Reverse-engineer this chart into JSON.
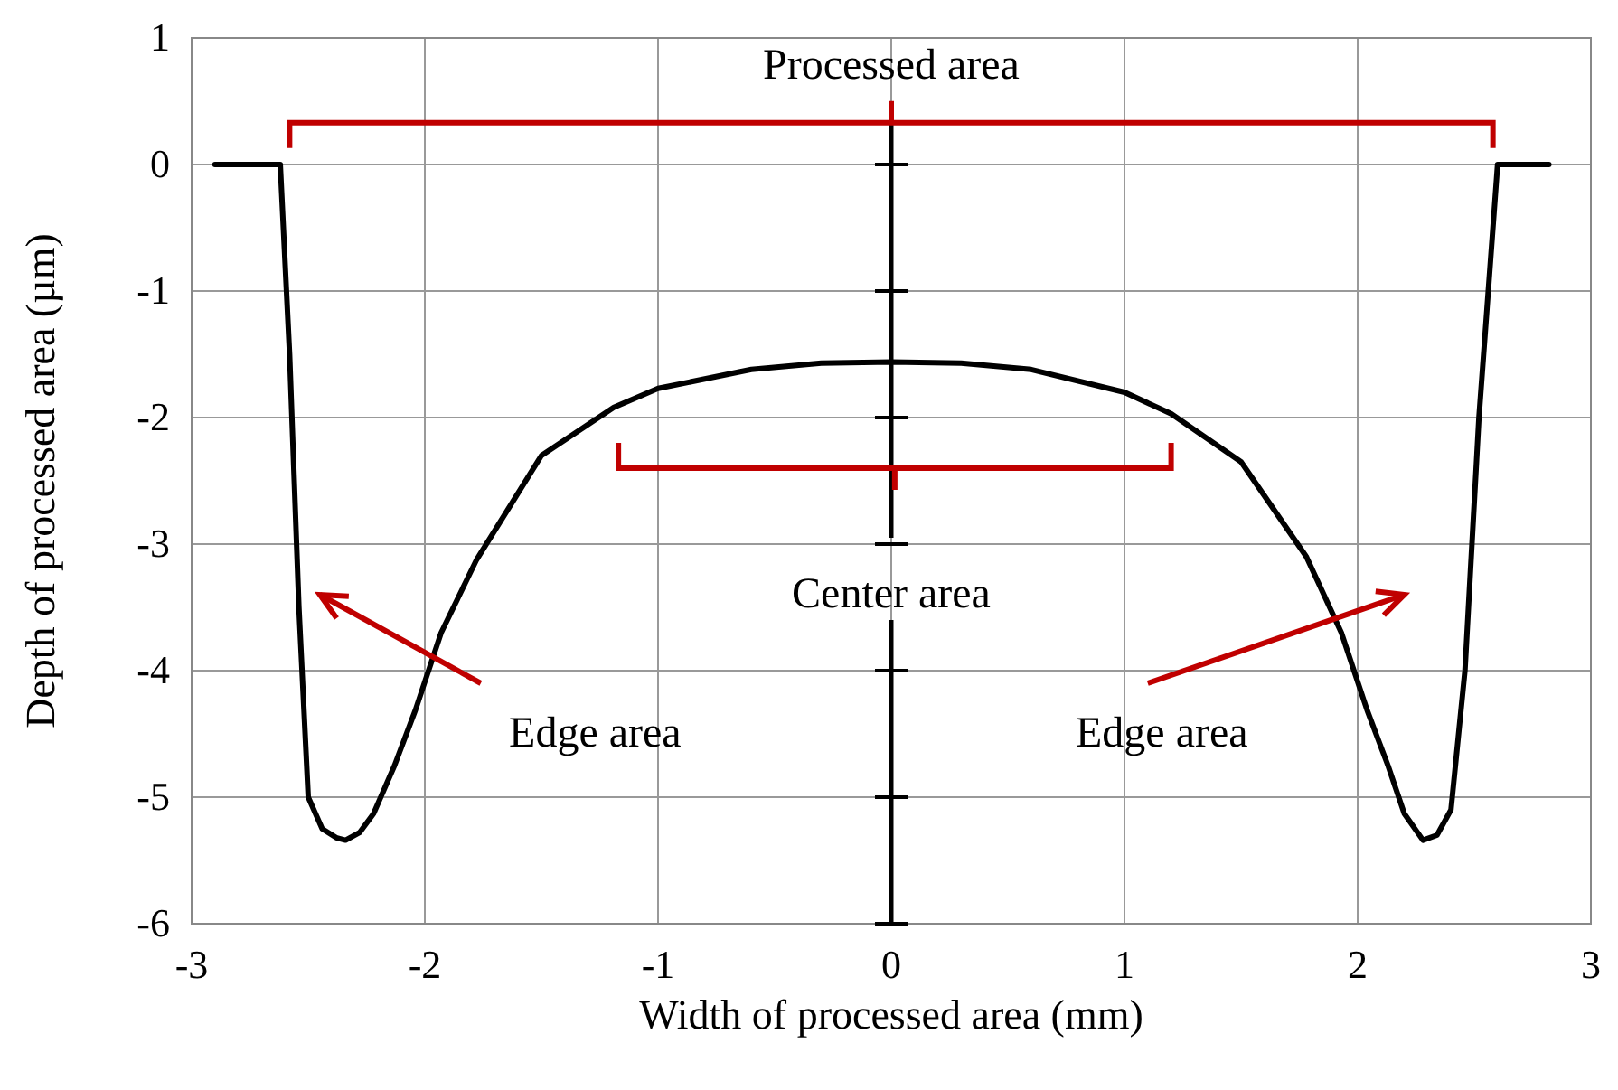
{
  "chart_data": {
    "type": "line",
    "xlabel": "Width of processed area (mm)",
    "ylabel": "Depth of processed area (µm)",
    "x": [
      -2.9,
      -2.62,
      -2.58,
      -2.54,
      -2.5,
      -2.44,
      -2.38,
      -2.34,
      -2.28,
      -2.22,
      -2.13,
      -2.04,
      -1.93,
      -1.78,
      -1.5,
      -1.19,
      -1.0,
      -0.6,
      -0.3,
      0,
      0.3,
      0.6,
      1.0,
      1.2,
      1.5,
      1.78,
      1.93,
      2.04,
      2.13,
      2.2,
      2.28,
      2.34,
      2.4,
      2.46,
      2.52,
      2.56,
      2.6,
      2.82
    ],
    "series": [
      {
        "color": "#000000",
        "values": [
          0,
          0,
          -1.5,
          -3.5,
          -5.0,
          -5.25,
          -5.32,
          -5.34,
          -5.28,
          -5.13,
          -4.75,
          -4.31,
          -3.7,
          -3.13,
          -2.3,
          -1.92,
          -1.77,
          -1.62,
          -1.57,
          -1.56,
          -1.57,
          -1.62,
          -1.8,
          -1.97,
          -2.35,
          -3.1,
          -3.7,
          -4.31,
          -4.75,
          -5.13,
          -5.34,
          -5.3,
          -5.1,
          -4.0,
          -2.0,
          -1.0,
          0,
          0
        ]
      }
    ],
    "xlim": [
      -3,
      3
    ],
    "xticks": [
      -3,
      -2,
      -1,
      0,
      1,
      2,
      3
    ],
    "ylim": [
      -6,
      1
    ],
    "yticks": [
      -6,
      -5,
      -4,
      -3,
      -2,
      -1,
      0,
      1
    ],
    "grid": true,
    "marker": "none",
    "line_style": "solid",
    "annotations": [
      "Processed area",
      "Center area",
      "Edge area",
      "Edge area"
    ]
  }
}
